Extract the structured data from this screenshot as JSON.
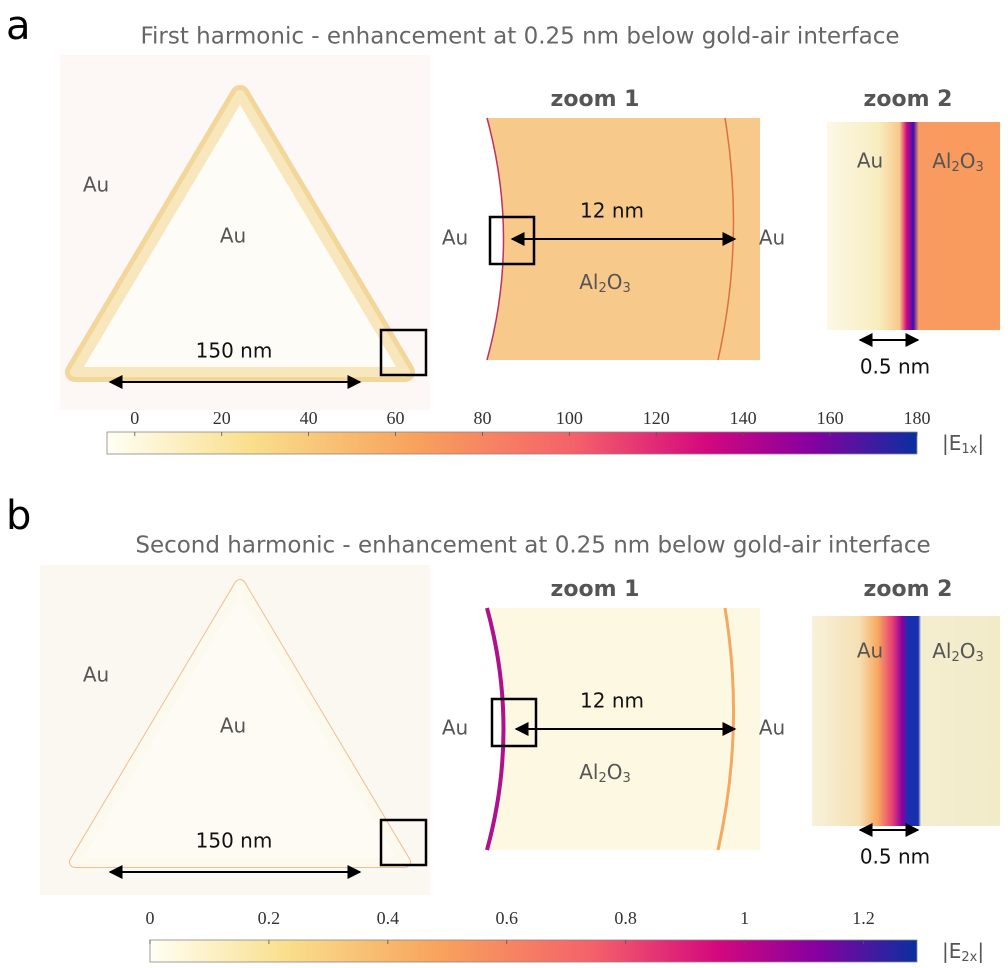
{
  "panels": [
    {
      "letter": "a",
      "title": "First harmonic - enhancement at 0.25 nm below gold-air interface",
      "triangle": {
        "labels": [
          "Au",
          "Au"
        ],
        "scale": "150 nm"
      },
      "zoom1": {
        "title": "zoom 1",
        "left": "Au",
        "right": "Au",
        "scale": "12 nm",
        "material": [
          "Al",
          "2",
          "O",
          "3"
        ]
      },
      "zoom2": {
        "title": "zoom 2",
        "left": "Au",
        "material": [
          "Al",
          "2",
          "O",
          "3"
        ],
        "scale": "0.5 nm"
      },
      "colorbar": {
        "lim": [
          -6.4,
          180
        ],
        "ticks": [
          0,
          20,
          40,
          60,
          80,
          100,
          120,
          140,
          160,
          180
        ],
        "label": [
          "|E",
          "1x",
          "|"
        ]
      }
    },
    {
      "letter": "b",
      "title": "Second harmonic - enhancement at 0.25 nm below gold-air interface",
      "triangle": {
        "labels": [
          "Au",
          "Au"
        ],
        "scale": "150 nm"
      },
      "zoom1": {
        "title": "zoom 1",
        "left": "Au",
        "right": "Au",
        "scale": "12 nm",
        "material": [
          "Al",
          "2",
          "O",
          "3"
        ]
      },
      "zoom2": {
        "title": "zoom 2",
        "left": "Au",
        "material": [
          "Al",
          "2",
          "O",
          "3"
        ],
        "scale": "0.5 nm"
      },
      "colorbar": {
        "lim": [
          0,
          1.29
        ],
        "ticks": [
          0,
          0.2,
          0.4,
          0.6,
          0.8,
          1,
          1.2
        ],
        "label": [
          "|E",
          "2x",
          "|"
        ]
      }
    }
  ]
}
